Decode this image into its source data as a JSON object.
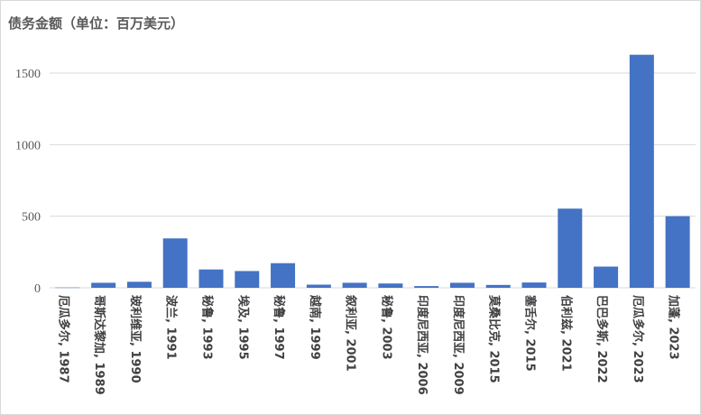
{
  "chart_data": {
    "type": "bar",
    "title": "债务金额（单位：百万美元）",
    "categories": [
      "厄瓜多尔, 1987",
      "哥斯达黎加, 1989",
      "玻利维亚, 1990",
      "波兰, 1991",
      "秘鲁, 1993",
      "埃及, 1995",
      "秘鲁, 1997",
      "越南, 1999",
      "叙利亚, 2001",
      "秘鲁, 2003",
      "印度尼西亚, 2006",
      "印度尼西亚, 2009",
      "莫桑比克, 2015",
      "塞舌尔, 2015",
      "伯利兹, 2021",
      "巴巴多斯, 2022",
      "厄瓜多尔, 2023",
      "加蓬, 2023"
    ],
    "values": [
      2,
      35,
      42,
      345,
      128,
      117,
      172,
      22,
      35,
      30,
      12,
      35,
      20,
      37,
      553,
      148,
      1628,
      500
    ],
    "yticks": [
      0,
      500,
      1000,
      1500
    ],
    "ylim": [
      0,
      1700
    ],
    "xlabel": "",
    "ylabel": "",
    "grid": true,
    "legend": "none",
    "bar_color": "#4472c4",
    "grid_color": "#d9d9d9"
  }
}
